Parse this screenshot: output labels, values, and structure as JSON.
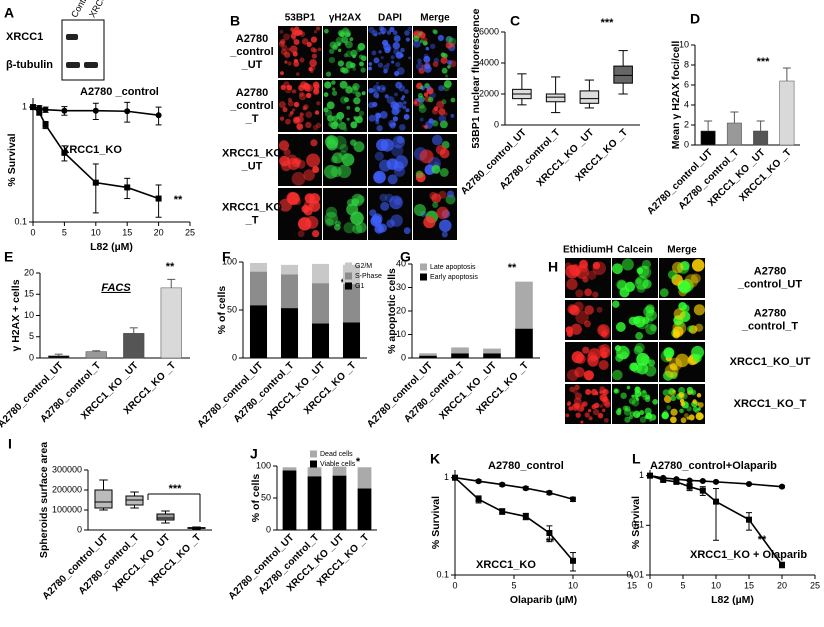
{
  "panel_labels": [
    "A",
    "B",
    "C",
    "D",
    "E",
    "F",
    "G",
    "H",
    "I",
    "J",
    "K",
    "L"
  ],
  "blot": {
    "rows": [
      "XRCC1",
      "β-tubulin"
    ],
    "columns": [
      "Control",
      "XRCC1_KO"
    ]
  },
  "image_panels": [
    {
      "channels": [
        "53BP1",
        "γH2AX",
        "DAPI",
        "Merge"
      ],
      "rows": [
        [
          "A2780",
          "_control",
          "_UT"
        ],
        [
          "A2780",
          "_control",
          "_T"
        ],
        [
          "XRCC1_KO",
          "_UT"
        ],
        [
          "XRCC1_KO",
          "_T"
        ]
      ]
    },
    {
      "channels": [
        "EthidiumH",
        "Calcein",
        "Merge"
      ],
      "rows": [
        [
          "A2780",
          "_control_UT"
        ],
        [
          "A2780",
          "_control_T"
        ],
        [
          "XRCC1_KO_UT"
        ],
        [
          "XRCC1_KO_T"
        ]
      ]
    }
  ],
  "chart_data": [
    {
      "type": "line",
      "log_y": true,
      "x": [
        0,
        1,
        2,
        5,
        10,
        15,
        20
      ],
      "xlim": [
        0,
        25
      ],
      "xticks": [
        0,
        5,
        10,
        15,
        20,
        25
      ],
      "ylim": [
        0.1,
        1.2
      ],
      "yticks": [
        0.1,
        1
      ],
      "x_label": "L82 (µM)",
      "y_label": "% Survival",
      "annotations": [
        "**"
      ],
      "series": [
        {
          "name": "A2780 _control",
          "color": "#000000",
          "marker": "circle",
          "values": [
            1,
            0.98,
            0.95,
            0.93,
            0.93,
            0.92,
            0.85
          ],
          "errors": [
            0,
            0.05,
            0.05,
            0.08,
            0.15,
            0.18,
            0.15
          ]
        },
        {
          "name": "XRCC1_KO",
          "color": "#000000",
          "marker": "square",
          "values": [
            1,
            0.9,
            0.7,
            0.4,
            0.22,
            0.2,
            0.16
          ],
          "errors": [
            0,
            0.05,
            0.05,
            0.06,
            0.1,
            0.04,
            0.05
          ]
        }
      ]
    },
    {
      "type": "box",
      "categories": [
        "A2780_control_UT",
        "A2780_control_T",
        "XRCC1_KO _UT",
        "XRCC1_KO _T"
      ],
      "ylim": [
        0,
        6000
      ],
      "yticks": [
        0,
        2000,
        4000,
        6000
      ],
      "y_label": "53BP1 nuclear fluorescence",
      "annotations": [
        "***"
      ],
      "colors": [
        "#dddddd",
        "#dddddd",
        "#dddddd",
        "#666666"
      ],
      "boxes": [
        {
          "min": 1300,
          "q1": 1700,
          "median": 2000,
          "q3": 2300,
          "max": 3300
        },
        {
          "min": 800,
          "q1": 1500,
          "median": 1800,
          "q3": 2000,
          "max": 3100
        },
        {
          "min": 1100,
          "q1": 1400,
          "median": 1700,
          "q3": 2200,
          "max": 2900
        },
        {
          "min": 2000,
          "q1": 2700,
          "median": 3200,
          "q3": 3800,
          "max": 4800
        }
      ]
    },
    {
      "type": "bar",
      "categories": [
        "A2780_control_UT",
        "A2780_control_T",
        "XRCC1_KO _UT",
        "XRCC1_KO _T"
      ],
      "ylim": [
        0,
        10
      ],
      "yticks": [
        0,
        2,
        4,
        6,
        8,
        10
      ],
      "y_label": "Mean γ H2AX foci/cell",
      "annotations": [
        "***"
      ],
      "colors": [
        "#000000",
        "#999999",
        "#555555",
        "#d9d9d9"
      ],
      "values": [
        1.4,
        2.2,
        1.4,
        6.4
      ],
      "errors": [
        1,
        1.1,
        1,
        1.3
      ]
    },
    {
      "type": "bar",
      "title": "FACS",
      "categories": [
        "A2780_control_UT",
        "A2780_control_T",
        "XRCC1_KO _UT",
        "XRCC1_KO _T"
      ],
      "ylim": [
        0,
        20
      ],
      "yticks": [
        0,
        5,
        10,
        15,
        20
      ],
      "y_label": "γ H2AX + cells",
      "annotations": [
        "**"
      ],
      "colors": [
        "#000000",
        "#999999",
        "#555555",
        "#d9d9d9"
      ],
      "values": [
        0.5,
        1.5,
        5.8,
        16.5
      ],
      "errors": [
        0.4,
        0.2,
        1.3,
        2
      ]
    },
    {
      "type": "stacked_bar",
      "categories": [
        "A2780_control_UT",
        "A2780_control_T",
        "XRCC1_KO _UT",
        "XRCC1_KO _T"
      ],
      "ylim": [
        0,
        100
      ],
      "yticks": [
        0,
        50,
        100
      ],
      "y_label": "% of cells",
      "annotations": [
        "**"
      ],
      "series": [
        {
          "name": "G1",
          "color": "#000000",
          "values": [
            55,
            52,
            36,
            37
          ]
        },
        {
          "name": "S-Phase",
          "color": "#8c8c8c",
          "values": [
            35,
            35,
            42,
            40
          ]
        },
        {
          "name": "G2/M",
          "color": "#c8c8c8",
          "values": [
            9,
            10,
            20,
            20
          ]
        }
      ]
    },
    {
      "type": "stacked_bar",
      "categories": [
        "A2780_control_UT",
        "A2780_control_T",
        "XRCC1_KO _UT",
        "XRCC1_KO _T"
      ],
      "ylim": [
        0,
        40
      ],
      "yticks": [
        0,
        10,
        20,
        30,
        40
      ],
      "y_label": "% apoptotic cells",
      "annotations": [
        "**"
      ],
      "series": [
        {
          "name": "Early apoptosis",
          "color": "#000000",
          "values": [
            1,
            2,
            2,
            12.5
          ]
        },
        {
          "name": "Late apoptosis",
          "color": "#aaaaaa",
          "values": [
            1,
            2.5,
            2,
            20
          ]
        }
      ]
    },
    {
      "type": "box",
      "categories": [
        "A2780_control_UT",
        "A2780_control_T",
        "XRCC1_KO _UT",
        "XRCC1_KO _T"
      ],
      "ylim": [
        0,
        300000
      ],
      "yticks": [
        0,
        100000,
        200000,
        300000
      ],
      "y_label": "Spheroids surface area",
      "annotations": [
        "***"
      ],
      "colors": [
        "#bbbbbb",
        "#bbbbbb",
        "#999999",
        "#777777"
      ],
      "boxes": [
        {
          "min": 100000,
          "q1": 110000,
          "median": 140000,
          "q3": 200000,
          "max": 250000
        },
        {
          "min": 110000,
          "q1": 125000,
          "median": 150000,
          "q3": 170000,
          "max": 190000
        },
        {
          "min": 35000,
          "q1": 50000,
          "median": 60000,
          "q3": 80000,
          "max": 95000
        },
        {
          "min": 5000,
          "q1": 8000,
          "median": 10000,
          "q3": 12000,
          "max": 15000
        }
      ]
    },
    {
      "type": "stacked_bar",
      "categories": [
        "A2780_control_UT",
        "A2780_control_T",
        "XRCC1_KO _UT",
        "XRCC1_KO _T"
      ],
      "ylim": [
        0,
        100
      ],
      "yticks": [
        0,
        50,
        100
      ],
      "y_label": "% of cells",
      "annotations": [
        "*"
      ],
      "series": [
        {
          "name": "Viable cells",
          "color": "#000000",
          "values": [
            93,
            84,
            85,
            65
          ]
        },
        {
          "name": "Dead cells",
          "color": "#aaaaaa",
          "values": [
            5,
            14,
            14,
            33
          ]
        }
      ]
    },
    {
      "type": "line",
      "log_y": true,
      "x": [
        0,
        2,
        4,
        6,
        8,
        10
      ],
      "xlim": [
        0,
        15
      ],
      "xticks": [
        0,
        5,
        10,
        15
      ],
      "ylim": [
        0.1,
        1.2
      ],
      "yticks": [
        0.1,
        1
      ],
      "x_label": "Olaparib (µM)",
      "y_label": "% Survival",
      "annotations": [
        "**"
      ],
      "series": [
        {
          "name": "A2780_control",
          "color": "#000000",
          "marker": "circle",
          "values": [
            1,
            0.92,
            0.85,
            0.78,
            0.7,
            0.6
          ],
          "errors": [
            0,
            0.03,
            0.03,
            0.03,
            0.03,
            0.03
          ]
        },
        {
          "name": "XRCC1_KO",
          "color": "#000000",
          "marker": "square",
          "values": [
            1,
            0.6,
            0.45,
            0.4,
            0.27,
            0.14
          ],
          "errors": [
            0,
            0.05,
            0.03,
            0.03,
            0.05,
            0.03
          ]
        }
      ]
    },
    {
      "type": "line",
      "log_y": true,
      "x": [
        0,
        2,
        4,
        6,
        8,
        10,
        15,
        20
      ],
      "xlim": [
        0,
        25
      ],
      "xticks": [
        0,
        5,
        10,
        15,
        20,
        25
      ],
      "ylim": [
        0.01,
        1.3
      ],
      "yticks": [
        0.01,
        0.1,
        1
      ],
      "x_label": "L82 (µM)",
      "y_label": "% Survival",
      "annotations": [
        "**"
      ],
      "series": [
        {
          "name": "A2780_control+Olaparib",
          "color": "#000000",
          "marker": "circle",
          "values": [
            1,
            0.9,
            0.85,
            0.8,
            0.78,
            0.75,
            0.68,
            0.6
          ],
          "errors": [
            0,
            0.03,
            0.03,
            0.03,
            0.03,
            0.03,
            0.03,
            0.03
          ]
        },
        {
          "name": "XRCC1_KO + Olaparib",
          "color": "#000000",
          "marker": "square",
          "values": [
            1,
            0.82,
            0.75,
            0.6,
            0.5,
            0.3,
            0.13,
            0.016
          ],
          "errors": [
            0,
            0.05,
            0.05,
            0.1,
            0.1,
            0.25,
            0.05,
            0.002
          ]
        }
      ]
    }
  ]
}
